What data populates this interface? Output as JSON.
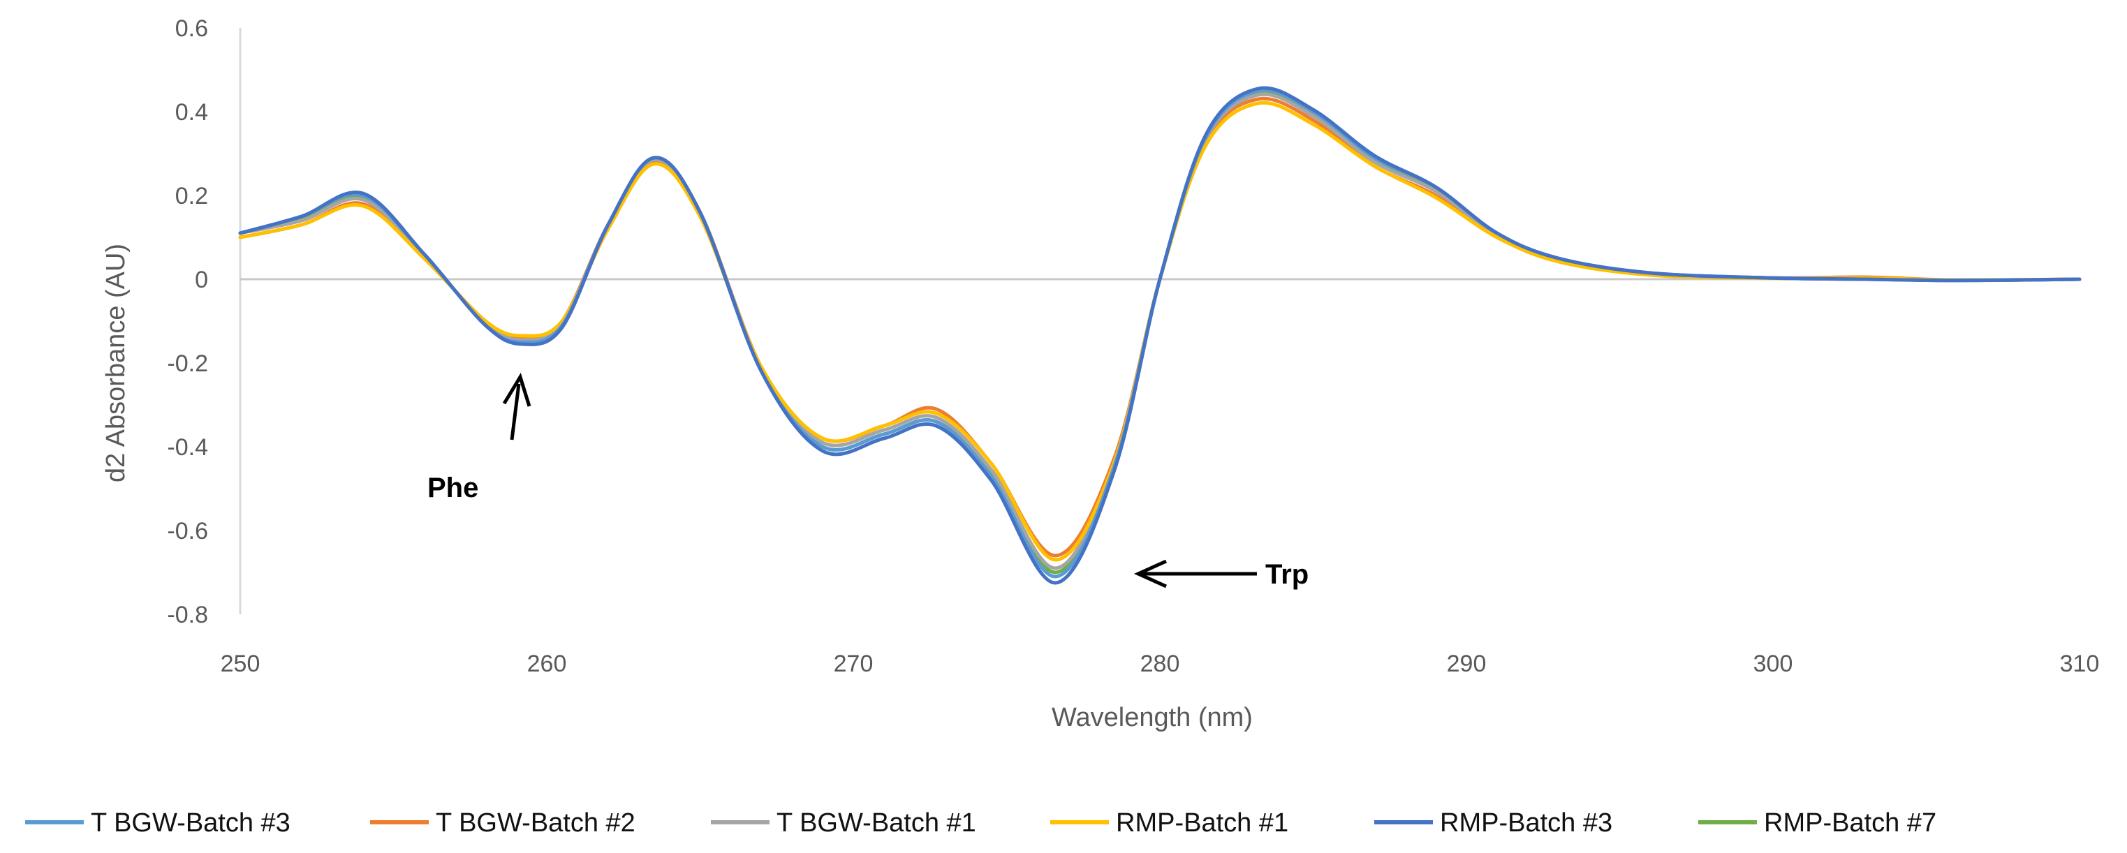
{
  "chart_data": {
    "type": "line",
    "title": "",
    "xlabel": "Wavelength (nm)",
    "ylabel": "d2 Absorbance (AU)",
    "xlim": [
      250,
      310
    ],
    "ylim": [
      -0.8,
      0.6
    ],
    "xticks": [
      250,
      260,
      270,
      280,
      290,
      300,
      310
    ],
    "yticks": [
      -0.8,
      -0.6,
      -0.4,
      -0.2,
      0,
      0.2,
      0.4,
      0.6
    ],
    "ytick_labels": [
      "-0.8",
      "-0.6",
      "-0.4",
      "-0.2",
      "0",
      "0.2",
      "0.4",
      "0.6"
    ],
    "grid": false,
    "zero_line": true,
    "legend_position": "bottom",
    "annotations": [
      {
        "text": "Phe",
        "points_to": [
          259.2,
          -0.15
        ],
        "direction": "up"
      },
      {
        "text": "Trp",
        "points_to": [
          278.3,
          -0.71
        ],
        "direction": "left"
      }
    ],
    "series": [
      {
        "name": "T BGW-Batch #3",
        "color": "#5b9bd5",
        "x": [
          250,
          252,
          254,
          256,
          258,
          259.2,
          260.5,
          262,
          263.5,
          265,
          267,
          269,
          271,
          272.7,
          274.5,
          276.6,
          278.5,
          280,
          281.5,
          283.2,
          285,
          287,
          289,
          291,
          293,
          296,
          300,
          303,
          306,
          310
        ],
        "y": [
          0.11,
          0.15,
          0.2,
          0.06,
          -0.11,
          -0.15,
          -0.11,
          0.13,
          0.29,
          0.16,
          -0.22,
          -0.4,
          -0.37,
          -0.34,
          -0.47,
          -0.71,
          -0.45,
          0.0,
          0.34,
          0.45,
          0.4,
          0.29,
          0.22,
          0.11,
          0.05,
          0.015,
          0.003,
          0.0,
          -0.003,
          0.0
        ]
      },
      {
        "name": "T BGW-Batch #2",
        "color": "#ed7d31",
        "x": [
          250,
          252,
          254,
          256,
          258,
          259.2,
          260.5,
          262,
          263.5,
          265,
          267,
          269,
          271,
          272.7,
          274.5,
          276.6,
          278.5,
          280,
          281.5,
          283.2,
          285,
          287,
          289,
          291,
          293,
          296,
          300,
          303,
          306,
          310
        ],
        "y": [
          0.1,
          0.13,
          0.18,
          0.05,
          -0.1,
          -0.14,
          -0.1,
          0.13,
          0.28,
          0.16,
          -0.21,
          -0.38,
          -0.35,
          -0.31,
          -0.44,
          -0.66,
          -0.43,
          0.0,
          0.33,
          0.43,
          0.38,
          0.27,
          0.2,
          0.1,
          0.045,
          0.012,
          0.003,
          0.005,
          -0.002,
          0.0
        ]
      },
      {
        "name": "T BGW-Batch #1",
        "color": "#a5a5a5",
        "x": [
          250,
          252,
          254,
          256,
          258,
          259.2,
          260.5,
          262,
          263.5,
          265,
          267,
          269,
          271,
          272.7,
          274.5,
          276.6,
          278.5,
          280,
          281.5,
          283.2,
          285,
          287,
          289,
          291,
          293,
          296,
          300,
          303,
          306,
          310
        ],
        "y": [
          0.11,
          0.14,
          0.19,
          0.055,
          -0.105,
          -0.145,
          -0.105,
          0.13,
          0.285,
          0.16,
          -0.215,
          -0.39,
          -0.36,
          -0.33,
          -0.455,
          -0.69,
          -0.44,
          0.0,
          0.335,
          0.44,
          0.39,
          0.28,
          0.21,
          0.105,
          0.048,
          0.013,
          0.003,
          0.002,
          -0.002,
          0.0
        ]
      },
      {
        "name": "RMP-Batch #1",
        "color": "#ffc000",
        "x": [
          250,
          252,
          254,
          256,
          258,
          259.2,
          260.5,
          262,
          263.5,
          265,
          267,
          269,
          271,
          272.7,
          274.5,
          276.6,
          278.5,
          280,
          281.5,
          283.2,
          285,
          287,
          289,
          291,
          293,
          296,
          300,
          303,
          306,
          310
        ],
        "y": [
          0.1,
          0.13,
          0.175,
          0.05,
          -0.1,
          -0.135,
          -0.1,
          0.12,
          0.275,
          0.15,
          -0.21,
          -0.38,
          -0.35,
          -0.32,
          -0.44,
          -0.67,
          -0.44,
          0.0,
          0.32,
          0.42,
          0.37,
          0.27,
          0.195,
          0.1,
          0.042,
          0.01,
          0.002,
          0.003,
          -0.002,
          0.0
        ]
      },
      {
        "name": "RMP-Batch #3",
        "color": "#4472c4",
        "x": [
          250,
          252,
          254,
          256,
          258,
          259.2,
          260.5,
          262,
          263.5,
          265,
          267,
          269,
          271,
          272.7,
          274.5,
          276.6,
          278.5,
          280,
          281.5,
          283.2,
          285,
          287,
          289,
          291,
          293,
          296,
          300,
          303,
          306,
          310
        ],
        "y": [
          0.11,
          0.15,
          0.205,
          0.06,
          -0.11,
          -0.155,
          -0.115,
          0.13,
          0.29,
          0.16,
          -0.22,
          -0.41,
          -0.38,
          -0.35,
          -0.48,
          -0.725,
          -0.46,
          0.0,
          0.345,
          0.455,
          0.405,
          0.295,
          0.22,
          0.11,
          0.05,
          0.015,
          0.003,
          0.0,
          -0.003,
          0.0
        ]
      },
      {
        "name": "RMP-Batch #7",
        "color": "#70ad47",
        "x": [
          250,
          252,
          254,
          256,
          258,
          259.2,
          260.5,
          262,
          263.5,
          265,
          267,
          269,
          271,
          272.7,
          274.5,
          276.6,
          278.5,
          280,
          281.5,
          283.2,
          285,
          287,
          289,
          291,
          293,
          296,
          300,
          303,
          306,
          310
        ],
        "y": [
          0.11,
          0.145,
          0.195,
          0.058,
          -0.108,
          -0.15,
          -0.11,
          0.13,
          0.287,
          0.16,
          -0.218,
          -0.4,
          -0.37,
          -0.34,
          -0.465,
          -0.7,
          -0.45,
          0.0,
          0.34,
          0.448,
          0.398,
          0.288,
          0.215,
          0.108,
          0.049,
          0.014,
          0.003,
          0.001,
          -0.003,
          0.0
        ]
      }
    ]
  }
}
